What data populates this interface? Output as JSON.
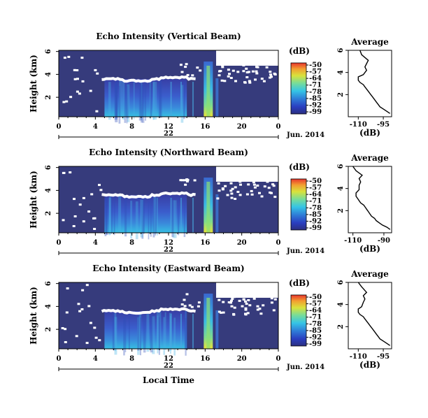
{
  "chart_data": [
    {
      "type": "heatmap",
      "title": "Echo Intensity (Vertical Beam)",
      "ylabel": "Height (km)",
      "x_ticks": [
        "0",
        "4",
        "8",
        "12",
        "16",
        "20",
        "0"
      ],
      "y_ticks": [
        "6",
        "4",
        "2"
      ],
      "date_tick": "22",
      "date_label": "Jun. 2014",
      "xlim": [
        0,
        24
      ],
      "ylim": [
        0.3,
        6.1
      ],
      "colorbar": {
        "unit": "(dB)",
        "ticks": [
          "-50",
          "-57",
          "-64",
          "-71",
          "-78",
          "-85",
          "-92",
          "-99"
        ],
        "range": [
          -99,
          -50
        ]
      },
      "features": {
        "bright_layer_km": 3.6,
        "precip_start_h": 5,
        "precip_end_h": 14,
        "strong_echo_h": 16
      }
    },
    {
      "type": "heatmap",
      "title": "Echo Intensity (Northward Beam)",
      "ylabel": "Height (km)",
      "x_ticks": [
        "0",
        "4",
        "8",
        "12",
        "16",
        "20",
        "0"
      ],
      "y_ticks": [
        "6",
        "4",
        "2"
      ],
      "date_tick": "22",
      "date_label": "Jun. 2014",
      "xlim": [
        0,
        24
      ],
      "ylim": [
        0.3,
        6.1
      ],
      "colorbar": {
        "unit": "(dB)",
        "ticks": [
          "-50",
          "-57",
          "-64",
          "-71",
          "-78",
          "-85",
          "-92",
          "-99"
        ],
        "range": [
          -99,
          -50
        ]
      },
      "features": {
        "bright_layer_km": 3.6,
        "precip_start_h": 5,
        "precip_end_h": 14,
        "strong_echo_h": 16
      }
    },
    {
      "type": "heatmap",
      "title": "Echo Intensity (Eastward Beam)",
      "ylabel": "Height (km)",
      "x_ticks": [
        "0",
        "4",
        "8",
        "12",
        "16",
        "20",
        "0"
      ],
      "y_ticks": [
        "6",
        "4",
        "2"
      ],
      "date_tick": "22",
      "date_label": "Jun. 2014",
      "xlim": [
        0,
        24
      ],
      "ylim": [
        0.3,
        6.1
      ],
      "colorbar": {
        "unit": "(dB)",
        "ticks": [
          "-50",
          "-57",
          "-64",
          "-71",
          "-78",
          "-85",
          "-92",
          "-99"
        ],
        "range": [
          -99,
          -50
        ]
      },
      "features": {
        "bright_layer_km": 3.6,
        "precip_start_h": 5,
        "precip_end_h": 14,
        "strong_echo_h": 16
      },
      "xlabel": "Local Time"
    },
    {
      "type": "line",
      "title": "Average",
      "xlabel": "(dB)",
      "x_ticks": [
        "-110",
        "-95"
      ],
      "y_ticks": [
        "6",
        "4",
        "2"
      ],
      "xlim": [
        -116,
        -90
      ],
      "ylim": [
        0,
        6
      ],
      "x": [
        -109,
        -108,
        -104,
        -105,
        -106,
        -105,
        -107,
        -110,
        -110,
        -109,
        -107,
        -106,
        -105,
        -104,
        -103,
        -102,
        -101,
        -100,
        -99,
        -98,
        -97,
        -95,
        -93,
        -91
      ],
      "y": [
        6,
        5.6,
        5.1,
        4.8,
        4.5,
        4.2,
        3.8,
        3.6,
        3.3,
        3.1,
        2.9,
        2.7,
        2.5,
        2.3,
        2.1,
        1.9,
        1.7,
        1.5,
        1.3,
        1.1,
        0.9,
        0.7,
        0.5,
        0.3
      ]
    },
    {
      "type": "line",
      "title": "Average",
      "xlabel": "(dB)",
      "x_ticks": [
        "-110",
        "-90"
      ],
      "y_ticks": [
        "6",
        "4",
        "2"
      ],
      "xlim": [
        -113,
        -85
      ],
      "ylim": [
        0,
        6
      ],
      "x": [
        -110,
        -108,
        -104,
        -106,
        -105,
        -106,
        -106,
        -108,
        -108,
        -107,
        -106,
        -105,
        -103,
        -102,
        -101,
        -100,
        -99,
        -98,
        -96,
        -95,
        -93,
        -91,
        -88,
        -86
      ],
      "y": [
        6,
        5.6,
        5.2,
        4.9,
        4.6,
        4.3,
        3.9,
        3.6,
        3.3,
        3.1,
        2.9,
        2.7,
        2.5,
        2.3,
        2.1,
        1.9,
        1.7,
        1.5,
        1.3,
        1.1,
        0.9,
        0.7,
        0.5,
        0.3
      ]
    },
    {
      "type": "line",
      "title": "Average",
      "xlabel": "(dB)",
      "x_ticks": [
        "-110",
        "-95"
      ],
      "y_ticks": [
        "6",
        "4",
        "2"
      ],
      "xlim": [
        -116,
        -90
      ],
      "ylim": [
        0,
        6
      ],
      "x": [
        -110,
        -108,
        -105,
        -107,
        -106,
        -107,
        -108,
        -110,
        -110,
        -109,
        -107,
        -106,
        -105,
        -104,
        -103,
        -102,
        -101,
        -100,
        -99,
        -98,
        -97,
        -95,
        -93,
        -91
      ],
      "y": [
        6,
        5.6,
        5.1,
        4.8,
        4.5,
        4.2,
        3.8,
        3.6,
        3.3,
        3.1,
        2.9,
        2.7,
        2.5,
        2.3,
        2.1,
        1.9,
        1.7,
        1.5,
        1.3,
        1.1,
        0.9,
        0.7,
        0.5,
        0.3
      ]
    }
  ]
}
